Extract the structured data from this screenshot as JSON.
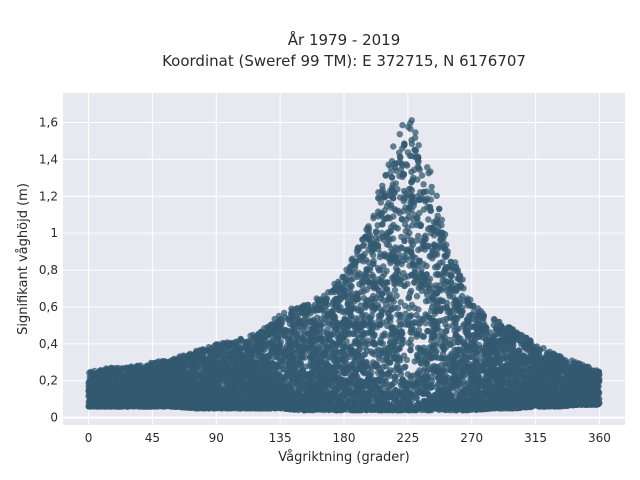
{
  "chart_data": {
    "type": "scatter",
    "title": [
      "År 1979 - 2019",
      "Koordinat (Sweref 99 TM): E 372715, N 6176707"
    ],
    "xlabel": "Vågriktning (grader)",
    "ylabel": "Signifikant våghöjd (m)",
    "xlim": [
      -18,
      378
    ],
    "ylim": [
      -0.04,
      1.76
    ],
    "x_ticks": [
      0,
      45,
      90,
      135,
      180,
      225,
      270,
      315,
      360
    ],
    "x_tick_labels": [
      "0",
      "45",
      "90",
      "135",
      "180",
      "225",
      "270",
      "315",
      "360"
    ],
    "y_ticks": [
      0,
      0.2,
      0.4,
      0.6,
      0.8,
      1,
      1.2,
      1.4,
      1.6
    ],
    "y_tick_labels": [
      "0",
      "0,2",
      "0,4",
      "0,6",
      "0,8",
      "1",
      "1,2",
      "1,4",
      "1,6"
    ],
    "grid": true,
    "marker_color": "#335a70",
    "background_color": "#e8e8f0",
    "envelope": {
      "x": [
        0,
        15,
        30,
        45,
        60,
        75,
        90,
        105,
        120,
        135,
        150,
        165,
        180,
        195,
        210,
        225,
        240,
        255,
        270,
        285,
        300,
        315,
        330,
        345,
        360
      ],
      "y_min": [
        0.06,
        0.06,
        0.06,
        0.06,
        0.06,
        0.05,
        0.05,
        0.05,
        0.05,
        0.05,
        0.04,
        0.04,
        0.04,
        0.04,
        0.04,
        0.04,
        0.04,
        0.04,
        0.04,
        0.05,
        0.05,
        0.06,
        0.06,
        0.07,
        0.07
      ],
      "y_max": [
        0.25,
        0.27,
        0.28,
        0.3,
        0.32,
        0.36,
        0.4,
        0.42,
        0.46,
        0.56,
        0.62,
        0.66,
        0.78,
        1.0,
        1.38,
        1.68,
        1.36,
        0.92,
        0.62,
        0.54,
        0.48,
        0.4,
        0.34,
        0.3,
        0.25
      ]
    },
    "n_points": 9000
  }
}
